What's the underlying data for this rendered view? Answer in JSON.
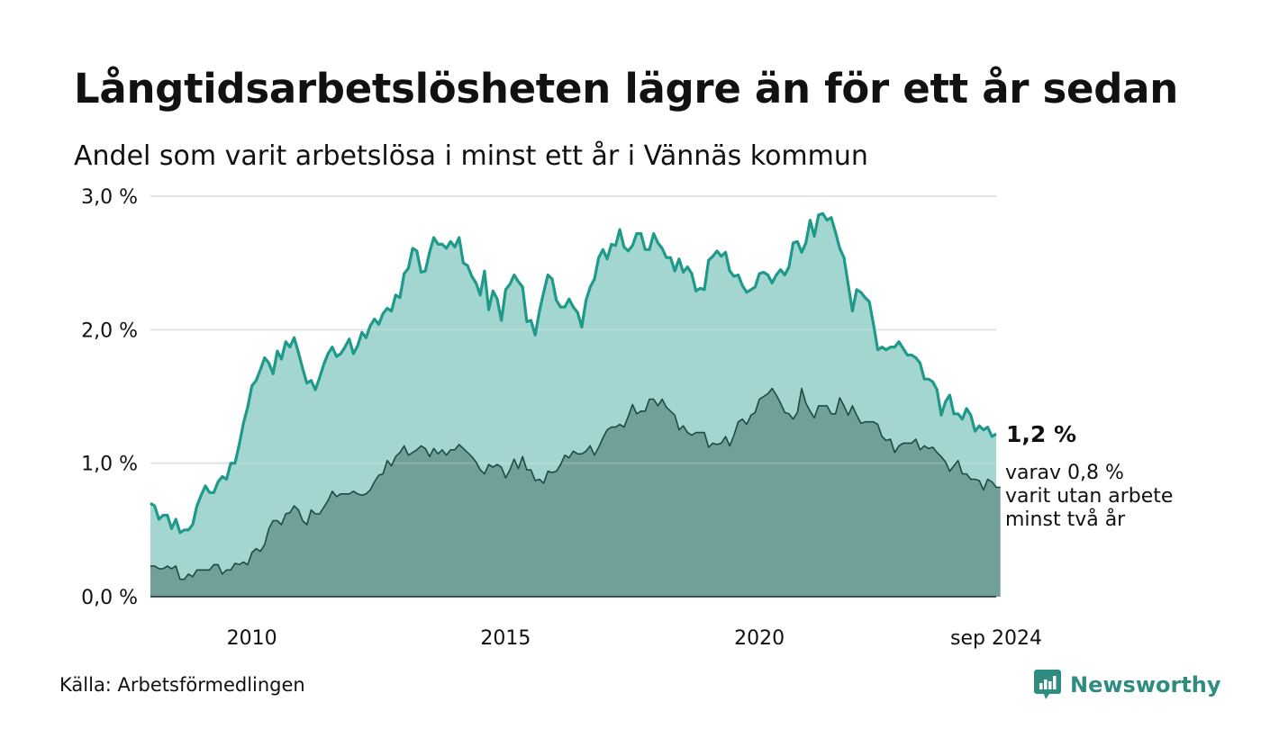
{
  "title": "Långtidsarbetslösheten lägre än för ett år sedan",
  "subtitle": "Andel som varit arbetslösa i minst ett år i Vännäs kommun",
  "source": "Källa: Arbetsförmedlingen",
  "brand": "Newsworthy",
  "colors": {
    "series1_fill": "#a3d6d0",
    "series1_line": "#1f9a8a",
    "series2_fill": "#70a098",
    "series2_line": "#1f4a44",
    "grid": "#dddddd",
    "brand": "#2e8c81"
  },
  "chart_data": {
    "type": "area",
    "x_start": "2008-01",
    "x_end": "2024-09",
    "x_frequency": "monthly",
    "xticks": [
      "2010",
      "2015",
      "2020",
      "sep 2024"
    ],
    "yticks": [
      "0,0 %",
      "1,0 %",
      "2,0 %",
      "3,0 %"
    ],
    "ylim": [
      0,
      3
    ],
    "grid": true,
    "annotations": {
      "end_value": "1,2 %",
      "end_label_lines": [
        "varav 0,8 %",
        "varit utan arbete",
        "minst två år"
      ]
    },
    "series": [
      {
        "values": [
          0.7,
          0.68,
          0.58,
          0.61,
          0.61,
          0.51,
          0.58,
          0.48,
          0.5,
          0.5,
          0.54,
          0.68,
          0.76,
          0.83,
          0.78,
          0.78,
          0.86,
          0.9,
          0.88,
          1.0,
          1.0,
          1.14,
          1.3,
          1.42,
          1.58,
          1.62,
          1.7,
          1.79,
          1.75,
          1.67,
          1.84,
          1.78,
          1.91,
          1.87,
          1.94,
          1.83,
          1.71,
          1.6,
          1.62,
          1.55,
          1.64,
          1.74,
          1.82,
          1.87,
          1.8,
          1.82,
          1.87,
          1.93,
          1.82,
          1.88,
          1.98,
          1.94,
          2.03,
          2.08,
          2.04,
          2.12,
          2.16,
          2.14,
          2.26,
          2.24,
          2.42,
          2.46,
          2.61,
          2.59,
          2.43,
          2.44,
          2.58,
          2.69,
          2.64,
          2.64,
          2.61,
          2.66,
          2.62,
          2.69,
          2.5,
          2.48,
          2.4,
          2.35,
          2.26,
          2.44,
          2.15,
          2.29,
          2.23,
          2.07,
          2.3,
          2.34,
          2.41,
          2.36,
          2.32,
          2.06,
          2.07,
          1.96,
          2.14,
          2.28,
          2.41,
          2.38,
          2.22,
          2.17,
          2.17,
          2.23,
          2.17,
          2.13,
          2.02,
          2.22,
          2.32,
          2.38,
          2.54,
          2.6,
          2.53,
          2.64,
          2.63,
          2.75,
          2.62,
          2.59,
          2.63,
          2.72,
          2.72,
          2.6,
          2.6,
          2.72,
          2.65,
          2.61,
          2.54,
          2.54,
          2.44,
          2.53,
          2.43,
          2.47,
          2.42,
          2.29,
          2.31,
          2.3,
          2.52,
          2.55,
          2.59,
          2.55,
          2.58,
          2.44,
          2.4,
          2.41,
          2.33,
          2.28,
          2.3,
          2.32,
          2.42,
          2.43,
          2.41,
          2.35,
          2.41,
          2.45,
          2.41,
          2.47,
          2.65,
          2.66,
          2.58,
          2.65,
          2.82,
          2.7,
          2.86,
          2.87,
          2.82,
          2.84,
          2.73,
          2.61,
          2.54,
          2.34,
          2.14,
          2.3,
          2.28,
          2.24,
          2.21,
          2.04,
          1.85,
          1.87,
          1.85,
          1.87,
          1.87,
          1.91,
          1.86,
          1.81,
          1.81,
          1.79,
          1.75,
          1.63,
          1.63,
          1.61,
          1.55,
          1.36,
          1.46,
          1.51,
          1.37,
          1.37,
          1.33,
          1.41,
          1.36,
          1.24,
          1.28,
          1.25,
          1.27,
          1.2,
          1.22
        ]
      },
      {
        "values": [
          0.23,
          0.23,
          0.21,
          0.21,
          0.23,
          0.21,
          0.23,
          0.13,
          0.13,
          0.17,
          0.15,
          0.2,
          0.2,
          0.2,
          0.2,
          0.24,
          0.24,
          0.17,
          0.2,
          0.2,
          0.25,
          0.24,
          0.26,
          0.24,
          0.33,
          0.36,
          0.34,
          0.39,
          0.51,
          0.57,
          0.57,
          0.54,
          0.62,
          0.63,
          0.68,
          0.65,
          0.57,
          0.54,
          0.65,
          0.62,
          0.62,
          0.67,
          0.72,
          0.79,
          0.75,
          0.77,
          0.77,
          0.77,
          0.79,
          0.77,
          0.76,
          0.77,
          0.8,
          0.86,
          0.91,
          0.92,
          1.02,
          0.98,
          1.05,
          1.08,
          1.13,
          1.06,
          1.08,
          1.1,
          1.13,
          1.11,
          1.05,
          1.11,
          1.07,
          1.1,
          1.06,
          1.1,
          1.1,
          1.14,
          1.11,
          1.08,
          1.05,
          1.01,
          0.95,
          0.92,
          0.99,
          0.97,
          0.99,
          0.97,
          0.89,
          0.95,
          1.03,
          0.96,
          1.05,
          0.95,
          0.95,
          0.87,
          0.88,
          0.85,
          0.94,
          0.93,
          0.94,
          0.99,
          1.06,
          1.04,
          1.09,
          1.07,
          1.07,
          1.09,
          1.13,
          1.06,
          1.12,
          1.19,
          1.25,
          1.27,
          1.27,
          1.29,
          1.27,
          1.35,
          1.44,
          1.37,
          1.39,
          1.39,
          1.48,
          1.48,
          1.43,
          1.48,
          1.42,
          1.39,
          1.36,
          1.25,
          1.28,
          1.23,
          1.21,
          1.23,
          1.23,
          1.23,
          1.12,
          1.15,
          1.14,
          1.15,
          1.2,
          1.13,
          1.21,
          1.31,
          1.33,
          1.29,
          1.36,
          1.38,
          1.48,
          1.5,
          1.52,
          1.56,
          1.51,
          1.45,
          1.38,
          1.37,
          1.33,
          1.38,
          1.56,
          1.45,
          1.39,
          1.34,
          1.43,
          1.43,
          1.43,
          1.37,
          1.37,
          1.49,
          1.43,
          1.36,
          1.43,
          1.36,
          1.3,
          1.31,
          1.31,
          1.31,
          1.29,
          1.2,
          1.17,
          1.18,
          1.08,
          1.13,
          1.15,
          1.15,
          1.15,
          1.18,
          1.1,
          1.13,
          1.11,
          1.12,
          1.08,
          1.05,
          1.01,
          0.94,
          0.98,
          1.02,
          0.92,
          0.92,
          0.88,
          0.88,
          0.87,
          0.8,
          0.88,
          0.86,
          0.82,
          0.82
        ]
      }
    ]
  }
}
